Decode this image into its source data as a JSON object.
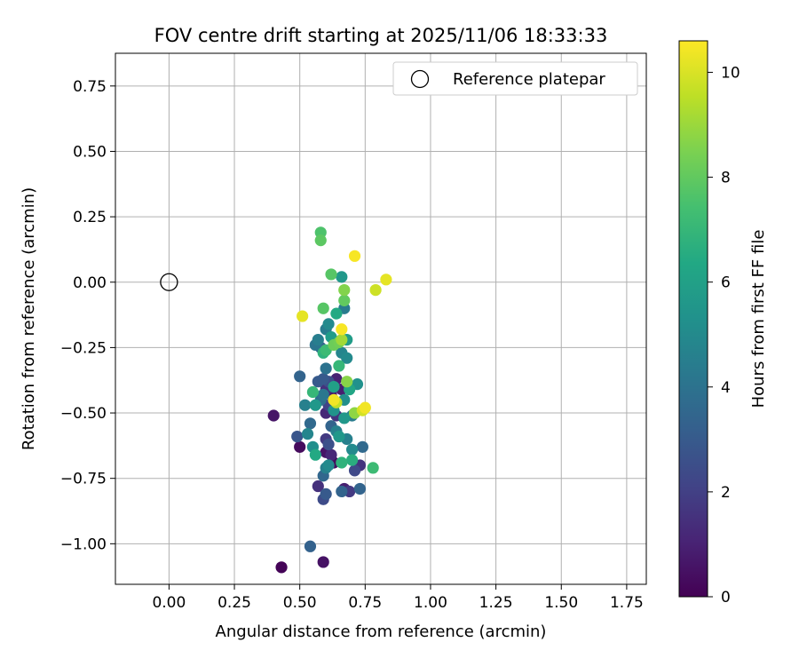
{
  "chart_data": {
    "type": "scatter",
    "title": "FOV centre drift starting at 2025/11/06 18:33:33",
    "xlabel": "Angular distance from reference (arcmin)",
    "ylabel": "Rotation from reference (arcmin)",
    "xlim": [
      -0.205,
      1.825
    ],
    "ylim": [
      -1.155,
      0.875
    ],
    "xticks": [
      0.0,
      0.25,
      0.5,
      0.75,
      1.0,
      1.25,
      1.5,
      1.75
    ],
    "xtick_labels": [
      "0.00",
      "0.25",
      "0.50",
      "0.75",
      "1.00",
      "1.25",
      "1.50",
      "1.75"
    ],
    "yticks": [
      0.75,
      0.5,
      0.25,
      0.0,
      -0.25,
      -0.5,
      -0.75,
      -1.0
    ],
    "ytick_labels": [
      "0.75",
      "0.50",
      "0.25",
      "0.00",
      "−0.25",
      "−0.50",
      "−0.75",
      "−1.00"
    ],
    "grid": true,
    "legend": {
      "placement": "upper-right",
      "entries": [
        "Reference platepar"
      ]
    },
    "reference": {
      "name": "Reference platepar",
      "x": 0.0,
      "y": 0.0
    },
    "colorbar": {
      "label": "Hours from first FF file",
      "colormap": "viridis",
      "range": [
        0,
        10.6
      ],
      "ticks": [
        0,
        2,
        4,
        6,
        8,
        10
      ],
      "tick_labels": [
        "0",
        "2",
        "4",
        "6",
        "8",
        "10"
      ]
    },
    "points": [
      {
        "x": 0.43,
        "y": -1.09,
        "h": 0.1
      },
      {
        "x": 0.59,
        "y": -1.07,
        "h": 0.5
      },
      {
        "x": 0.54,
        "y": -1.01,
        "h": 3.3
      },
      {
        "x": 0.4,
        "y": -0.51,
        "h": 0.6
      },
      {
        "x": 0.5,
        "y": -0.63,
        "h": 0.3
      },
      {
        "x": 0.49,
        "y": -0.59,
        "h": 2.8
      },
      {
        "x": 0.52,
        "y": -0.47,
        "h": 4.6
      },
      {
        "x": 0.5,
        "y": -0.36,
        "h": 3.4
      },
      {
        "x": 0.51,
        "y": -0.13,
        "h": 10.2
      },
      {
        "x": 0.54,
        "y": -0.54,
        "h": 3.6
      },
      {
        "x": 0.53,
        "y": -0.58,
        "h": 4.8
      },
      {
        "x": 0.55,
        "y": -0.63,
        "h": 5.2
      },
      {
        "x": 0.56,
        "y": -0.66,
        "h": 6.4
      },
      {
        "x": 0.55,
        "y": -0.42,
        "h": 7.0
      },
      {
        "x": 0.56,
        "y": -0.47,
        "h": 5.6
      },
      {
        "x": 0.57,
        "y": -0.38,
        "h": 3.0
      },
      {
        "x": 0.56,
        "y": -0.24,
        "h": 4.1
      },
      {
        "x": 0.57,
        "y": -0.22,
        "h": 4.5
      },
      {
        "x": 0.58,
        "y": 0.19,
        "h": 7.6
      },
      {
        "x": 0.58,
        "y": 0.16,
        "h": 7.9
      },
      {
        "x": 0.57,
        "y": -0.78,
        "h": 1.5
      },
      {
        "x": 0.59,
        "y": -0.83,
        "h": 2.4
      },
      {
        "x": 0.6,
        "y": -0.81,
        "h": 3.0
      },
      {
        "x": 0.59,
        "y": -0.74,
        "h": 3.5
      },
      {
        "x": 0.6,
        "y": -0.71,
        "h": 4.6
      },
      {
        "x": 0.61,
        "y": -0.7,
        "h": 5.0
      },
      {
        "x": 0.6,
        "y": -0.65,
        "h": 0.6
      },
      {
        "x": 0.62,
        "y": -0.66,
        "h": 1.2
      },
      {
        "x": 0.63,
        "y": -0.69,
        "h": 0.3
      },
      {
        "x": 0.6,
        "y": -0.6,
        "h": 1.8
      },
      {
        "x": 0.61,
        "y": -0.62,
        "h": 2.6
      },
      {
        "x": 0.62,
        "y": -0.55,
        "h": 3.4
      },
      {
        "x": 0.6,
        "y": -0.5,
        "h": 1.2
      },
      {
        "x": 0.61,
        "y": -0.47,
        "h": 2.1
      },
      {
        "x": 0.58,
        "y": -0.45,
        "h": 3.8
      },
      {
        "x": 0.59,
        "y": -0.43,
        "h": 4.2
      },
      {
        "x": 0.6,
        "y": -0.41,
        "h": 1.5
      },
      {
        "x": 0.61,
        "y": -0.38,
        "h": 2.5
      },
      {
        "x": 0.62,
        "y": -0.43,
        "h": 0.8
      },
      {
        "x": 0.63,
        "y": -0.4,
        "h": 6.0
      },
      {
        "x": 0.59,
        "y": -0.37,
        "h": 3.0
      },
      {
        "x": 0.6,
        "y": -0.33,
        "h": 4.0
      },
      {
        "x": 0.59,
        "y": -0.27,
        "h": 6.8
      },
      {
        "x": 0.58,
        "y": -0.25,
        "h": 3.3
      },
      {
        "x": 0.6,
        "y": -0.26,
        "h": 7.2
      },
      {
        "x": 0.59,
        "y": -0.1,
        "h": 7.8
      },
      {
        "x": 0.6,
        "y": -0.18,
        "h": 4.4
      },
      {
        "x": 0.61,
        "y": -0.16,
        "h": 5.0
      },
      {
        "x": 0.62,
        "y": -0.21,
        "h": 5.8
      },
      {
        "x": 0.63,
        "y": -0.24,
        "h": 8.2
      },
      {
        "x": 0.62,
        "y": 0.03,
        "h": 7.8
      },
      {
        "x": 0.64,
        "y": -0.12,
        "h": 6.4
      },
      {
        "x": 0.63,
        "y": -0.45,
        "h": 10.4
      },
      {
        "x": 0.64,
        "y": -0.46,
        "h": 9.6
      },
      {
        "x": 0.63,
        "y": -0.49,
        "h": 5.4
      },
      {
        "x": 0.64,
        "y": -0.51,
        "h": 1.6
      },
      {
        "x": 0.64,
        "y": -0.57,
        "h": 4.6
      },
      {
        "x": 0.65,
        "y": -0.59,
        "h": 5.6
      },
      {
        "x": 0.64,
        "y": -0.37,
        "h": 1.0
      },
      {
        "x": 0.65,
        "y": -0.32,
        "h": 7.0
      },
      {
        "x": 0.65,
        "y": -0.23,
        "h": 8.3
      },
      {
        "x": 0.66,
        "y": -0.22,
        "h": 9.1
      },
      {
        "x": 0.66,
        "y": -0.27,
        "h": 4.8
      },
      {
        "x": 0.66,
        "y": -0.18,
        "h": 10.5
      },
      {
        "x": 0.67,
        "y": -0.1,
        "h": 4.4
      },
      {
        "x": 0.67,
        "y": -0.07,
        "h": 8.0
      },
      {
        "x": 0.67,
        "y": -0.03,
        "h": 8.6
      },
      {
        "x": 0.66,
        "y": 0.02,
        "h": 5.6
      },
      {
        "x": 0.67,
        "y": -0.45,
        "h": 5.2
      },
      {
        "x": 0.67,
        "y": -0.52,
        "h": 5.6
      },
      {
        "x": 0.66,
        "y": -0.41,
        "h": 0.9
      },
      {
        "x": 0.68,
        "y": -0.38,
        "h": 8.7
      },
      {
        "x": 0.68,
        "y": -0.22,
        "h": 5.8
      },
      {
        "x": 0.68,
        "y": -0.29,
        "h": 5.0
      },
      {
        "x": 0.66,
        "y": -0.8,
        "h": 3.4
      },
      {
        "x": 0.67,
        "y": -0.79,
        "h": 0.9
      },
      {
        "x": 0.69,
        "y": -0.8,
        "h": 1.8
      },
      {
        "x": 0.66,
        "y": -0.69,
        "h": 6.8
      },
      {
        "x": 0.68,
        "y": -0.6,
        "h": 4.6
      },
      {
        "x": 0.7,
        "y": -0.64,
        "h": 5.0
      },
      {
        "x": 0.7,
        "y": -0.68,
        "h": 6.6
      },
      {
        "x": 0.71,
        "y": -0.72,
        "h": 2.3
      },
      {
        "x": 0.73,
        "y": -0.79,
        "h": 3.4
      },
      {
        "x": 0.73,
        "y": -0.7,
        "h": 1.6
      },
      {
        "x": 0.74,
        "y": -0.63,
        "h": 3.6
      },
      {
        "x": 0.69,
        "y": -0.41,
        "h": 6.2
      },
      {
        "x": 0.7,
        "y": -0.51,
        "h": 4.4
      },
      {
        "x": 0.71,
        "y": -0.5,
        "h": 8.8
      },
      {
        "x": 0.72,
        "y": -0.39,
        "h": 5.3
      },
      {
        "x": 0.71,
        "y": 0.1,
        "h": 10.5
      },
      {
        "x": 0.75,
        "y": -0.48,
        "h": 10.4
      },
      {
        "x": 0.74,
        "y": -0.49,
        "h": 9.9
      },
      {
        "x": 0.78,
        "y": -0.71,
        "h": 7.2
      },
      {
        "x": 0.79,
        "y": -0.03,
        "h": 9.8
      },
      {
        "x": 0.83,
        "y": 0.01,
        "h": 10.2
      }
    ]
  }
}
